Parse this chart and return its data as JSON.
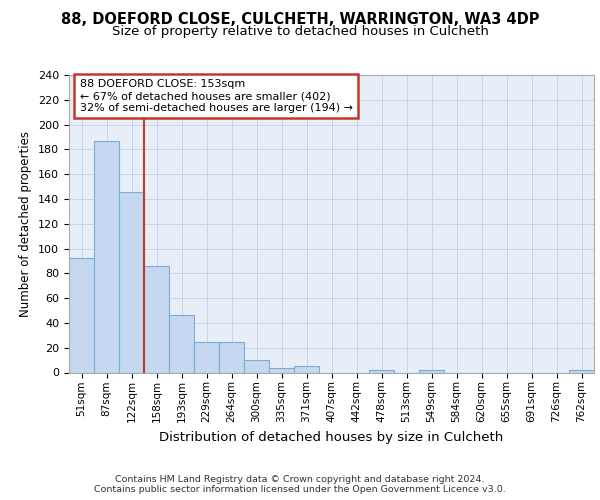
{
  "title1": "88, DOEFORD CLOSE, CULCHETH, WARRINGTON, WA3 4DP",
  "title2": "Size of property relative to detached houses in Culcheth",
  "xlabel": "Distribution of detached houses by size in Culcheth",
  "ylabel": "Number of detached properties",
  "categories": [
    "51sqm",
    "87sqm",
    "122sqm",
    "158sqm",
    "193sqm",
    "229sqm",
    "264sqm",
    "300sqm",
    "335sqm",
    "371sqm",
    "407sqm",
    "442sqm",
    "478sqm",
    "513sqm",
    "549sqm",
    "584sqm",
    "620sqm",
    "655sqm",
    "691sqm",
    "726sqm",
    "762sqm"
  ],
  "values": [
    92,
    187,
    146,
    86,
    46,
    25,
    25,
    10,
    4,
    5,
    0,
    0,
    2,
    0,
    2,
    0,
    0,
    0,
    0,
    0,
    2
  ],
  "bar_color": "#c5d8ef",
  "bar_edge_color": "#7aadd4",
  "vline_color": "#c0392b",
  "vline_x_index": 3,
  "annotation_lines": [
    "88 DOEFORD CLOSE: 153sqm",
    "← 67% of detached houses are smaller (402)",
    "32% of semi-detached houses are larger (194) →"
  ],
  "annotation_box_edgecolor": "#c0392b",
  "ylim": [
    0,
    240
  ],
  "yticks": [
    0,
    20,
    40,
    60,
    80,
    100,
    120,
    140,
    160,
    180,
    200,
    220,
    240
  ],
  "grid_color": "#c8d4e8",
  "bg_color": "#e8eef8",
  "footer": "Contains HM Land Registry data © Crown copyright and database right 2024.\nContains public sector information licensed under the Open Government Licence v3.0."
}
